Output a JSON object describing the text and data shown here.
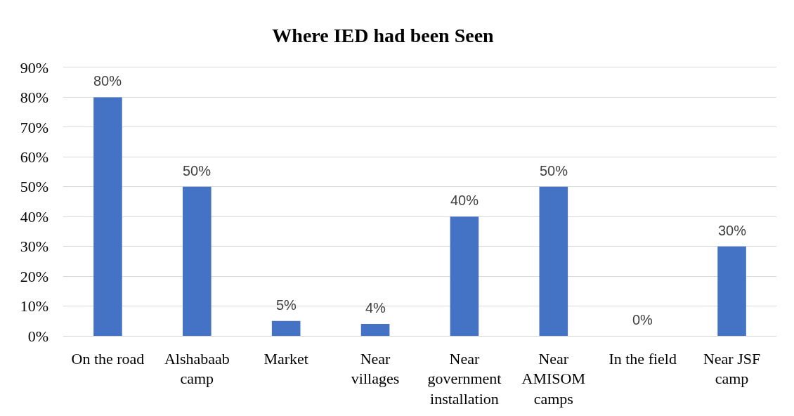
{
  "chart_data": {
    "type": "bar",
    "title": "Where IED had been Seen",
    "categories": [
      "On the road",
      "Alshabaab camp",
      "Market",
      "Near villages",
      "Near government installation",
      "Near AMISOM camps",
      "In the field",
      "Near JSF camp"
    ],
    "values": [
      80,
      50,
      5,
      4,
      40,
      50,
      0,
      30
    ],
    "value_labels": [
      "80%",
      "50%",
      "5%",
      "4%",
      "40%",
      "50%",
      "0%",
      "30%"
    ],
    "color": "#4472c4",
    "ylim": [
      0,
      90
    ],
    "yticks": [
      {
        "value": 0,
        "label": "0%"
      },
      {
        "value": 10,
        "label": "10%"
      },
      {
        "value": 20,
        "label": "20%"
      },
      {
        "value": 30,
        "label": "30%"
      },
      {
        "value": 40,
        "label": "40%"
      },
      {
        "value": 50,
        "label": "50%"
      },
      {
        "value": 60,
        "label": "60%"
      },
      {
        "value": 70,
        "label": "70%"
      },
      {
        "value": 80,
        "label": "80%"
      },
      {
        "value": 90,
        "label": "90%"
      }
    ],
    "grid": "y"
  }
}
